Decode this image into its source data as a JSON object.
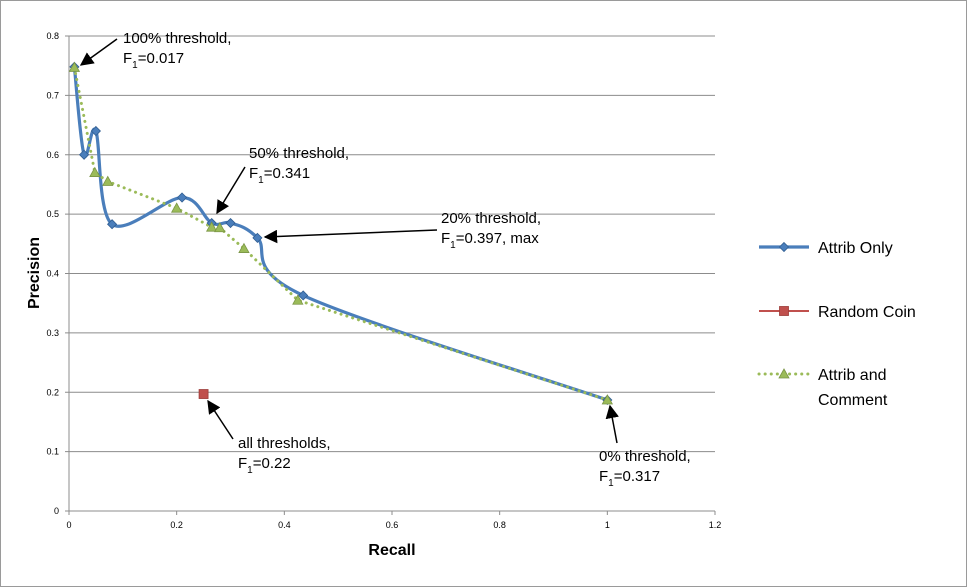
{
  "chart_data": {
    "type": "line",
    "xlabel": "Recall",
    "ylabel": "Precision",
    "xlim": [
      0,
      1.2
    ],
    "ylim": [
      0,
      0.8
    ],
    "xticks": [
      0,
      0.2,
      0.4,
      0.6,
      0.8,
      1,
      1.2
    ],
    "xtick_labels": [
      "0",
      "0.2",
      "0.4",
      "0.6",
      "0.8",
      "1",
      "1.2"
    ],
    "yticks": [
      0,
      0.1,
      0.2,
      0.3,
      0.4,
      0.5,
      0.6,
      0.7,
      0.8
    ],
    "ytick_labels": [
      "0",
      "0.1",
      "0.2",
      "0.3",
      "0.4",
      "0.5",
      "0.6",
      "0.7",
      "0.8"
    ],
    "grid": "horizontal",
    "legend_position": "right",
    "series": [
      {
        "name": "Attrib Only",
        "color": "#4a7ebb",
        "style": "smooth-solid",
        "marker": "diamond",
        "x": [
          0.01,
          0.028,
          0.05,
          0.08,
          0.21,
          0.265,
          0.3,
          0.35,
          0.435,
          1.0
        ],
        "y": [
          0.748,
          0.6,
          0.64,
          0.483,
          0.528,
          0.485,
          0.485,
          0.46,
          0.363,
          0.187
        ]
      },
      {
        "name": "Random Coin",
        "color": "#c0504d",
        "style": "none",
        "marker": "square",
        "x": [
          0.25
        ],
        "y": [
          0.197
        ]
      },
      {
        "name": "Attrib and Comment",
        "legend_lines": [
          "Attrib and",
          "Comment"
        ],
        "color": "#9bbb59",
        "style": "dotted",
        "marker": "triangle",
        "x": [
          0.01,
          0.048,
          0.072,
          0.2,
          0.265,
          0.28,
          0.325,
          0.425,
          1.0
        ],
        "y": [
          0.747,
          0.57,
          0.555,
          0.51,
          0.478,
          0.477,
          0.442,
          0.355,
          0.187
        ]
      }
    ],
    "annotations": [
      {
        "lines": [
          [
            "100% threshold,",
            ""
          ],
          [
            "F",
            "1",
            "=0.017"
          ]
        ],
        "target": [
          0.01,
          0.748
        ]
      },
      {
        "lines": [
          [
            "50% threshold,",
            ""
          ],
          [
            "F",
            "1",
            "=0.341"
          ]
        ],
        "target": [
          0.265,
          0.485
        ]
      },
      {
        "lines": [
          [
            "20% threshold,",
            ""
          ],
          [
            "F",
            "1",
            "=0.397, max"
          ]
        ],
        "target": [
          0.35,
          0.46
        ]
      },
      {
        "lines": [
          [
            "all thresholds,",
            ""
          ],
          [
            "F",
            "1",
            "=0.22"
          ]
        ],
        "target": [
          0.25,
          0.197
        ]
      },
      {
        "lines": [
          [
            "0% threshold,",
            ""
          ],
          [
            "F",
            "1",
            "=0.317"
          ]
        ],
        "target": [
          1.0,
          0.187
        ]
      }
    ]
  }
}
